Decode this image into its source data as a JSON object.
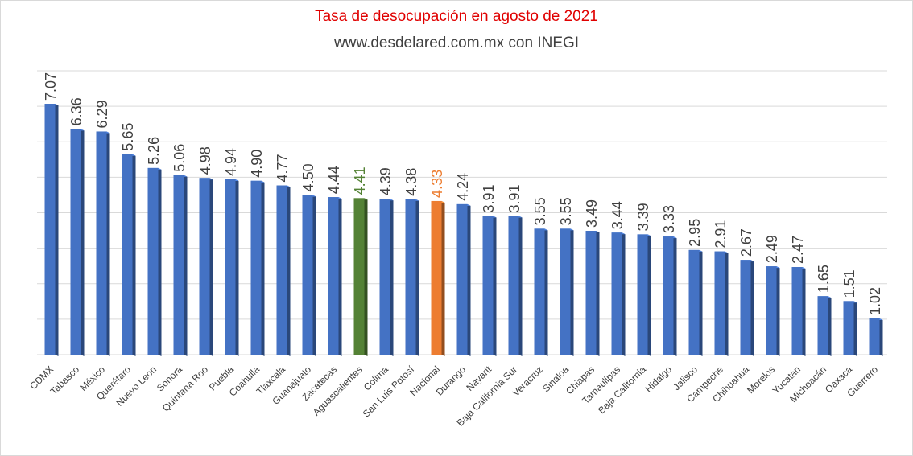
{
  "chart_data": {
    "type": "bar",
    "title": "Tasa de desocupación en agosto de 2021",
    "subtitle": "www.desdelared.com.mx con INEGI",
    "xlabel": "",
    "ylabel": "",
    "ylim": [
      0,
      8
    ],
    "grid": true,
    "categories": [
      "CDMX",
      "Tabasco",
      "México",
      "Querétaro",
      "Nuevo León",
      "Sonora",
      "Quintana Roo",
      "Puebla",
      "Coahuila",
      "Tlaxcala",
      "Guanajuato",
      "Zacatecas",
      "Aguascalientes",
      "Colima",
      "San Luis Potosí",
      "Nacional",
      "Durango",
      "Nayarit",
      "Baja California Sur",
      "Veracruz",
      "Sinaloa",
      "Chiapas",
      "Tamaulipas",
      "Baja California",
      "Hidalgo",
      "Jalisco",
      "Campeche",
      "Chihuahua",
      "Morelos",
      "Yucatán",
      "Michoacán",
      "Oaxaca",
      "Guerrero"
    ],
    "values": [
      7.07,
      6.36,
      6.29,
      5.65,
      5.26,
      5.06,
      4.98,
      4.94,
      4.9,
      4.77,
      4.5,
      4.44,
      4.41,
      4.39,
      4.38,
      4.33,
      4.24,
      3.91,
      3.91,
      3.55,
      3.55,
      3.49,
      3.44,
      3.39,
      3.33,
      2.95,
      2.91,
      2.67,
      2.49,
      2.47,
      1.65,
      1.51,
      1.02
    ],
    "value_labels": [
      "7.07",
      "6.36",
      "6.29",
      "5.65",
      "5.26",
      "5.06",
      "4.98",
      "4.94",
      "4.90",
      "4.77",
      "4.50",
      "4.44",
      "4.41",
      "4.39",
      "4.38",
      "4.33",
      "4.24",
      "3.91",
      "3.91",
      "3.55",
      "3.55",
      "3.49",
      "3.44",
      "3.39",
      "3.33",
      "2.95",
      "2.91",
      "2.67",
      "2.49",
      "2.47",
      "1.65",
      "1.51",
      "1.02"
    ],
    "colors": {
      "default_bar": "#4472c4",
      "highlight_aguascalientes": "#548235",
      "highlight_nacional": "#ed7d31",
      "title": "#e00000",
      "subtitle": "#404040",
      "gridline": "#d9d9d9"
    },
    "highlights": {
      "Aguascalientes": "#548235",
      "Nacional": "#ed7d31"
    }
  }
}
